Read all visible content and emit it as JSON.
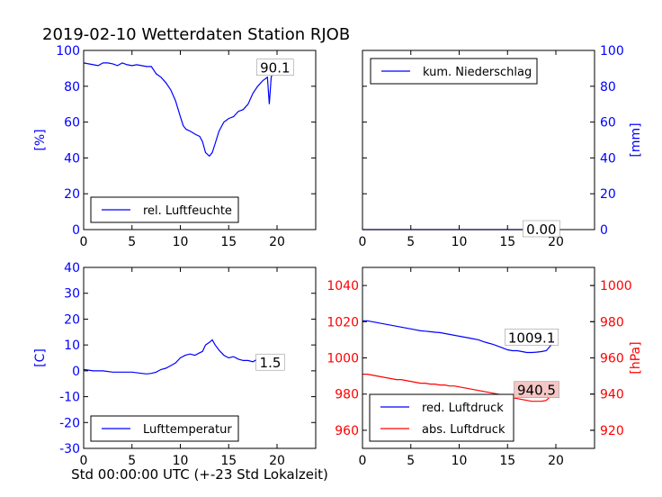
{
  "figure": {
    "title": "2019-02-10 Wetterdaten Station RJOB",
    "xlabel": "Std 00:00:00 UTC (+-23 Std Lokalzeit)"
  },
  "chart_data": [
    {
      "type": "line",
      "id": "humidity",
      "ylabel": "[%]",
      "ylabel_color": "#0000ff",
      "xlim": [
        0,
        24
      ],
      "ylim": [
        0,
        100
      ],
      "xticks": [
        0,
        5,
        10,
        15,
        20
      ],
      "yticks": [
        0,
        20,
        40,
        60,
        80,
        100
      ],
      "legend_location": "lower-left",
      "annotation": {
        "text": "90.1",
        "x": 19.8,
        "y": 90.1
      },
      "series": [
        {
          "name": "rel. Luftfeuchte",
          "color": "#0000ff",
          "x": [
            0,
            0.5,
            1,
            1.5,
            2,
            2.5,
            3,
            3.5,
            4,
            4.5,
            5,
            5.5,
            6,
            6.5,
            7,
            7.5,
            8,
            8.5,
            9,
            9.5,
            10,
            10.3,
            10.6,
            11,
            11.3,
            11.6,
            12,
            12.3,
            12.6,
            13,
            13.3,
            13.6,
            14,
            14.5,
            15,
            15.5,
            16,
            16.5,
            17,
            17.5,
            18,
            18.5,
            19,
            19.2,
            19.4,
            19.6,
            19.8
          ],
          "y": [
            93,
            92.5,
            92,
            91.5,
            93,
            93,
            92.5,
            91.5,
            93,
            92,
            91.5,
            92,
            91.5,
            91,
            91,
            87,
            85,
            82,
            78,
            72,
            63,
            58,
            56,
            55,
            54,
            53,
            52,
            49,
            43,
            41,
            43,
            48,
            55,
            60,
            62,
            63,
            66,
            67,
            70,
            76,
            80,
            83,
            85,
            70,
            85,
            88,
            90.1
          ]
        }
      ]
    },
    {
      "type": "line",
      "id": "precipitation",
      "ylabel": "[mm]",
      "ylabel_color": "#0000ff",
      "xlim": [
        0,
        24
      ],
      "ylim": [
        0,
        100
      ],
      "xticks": [
        0,
        5,
        10,
        15,
        20
      ],
      "yticks": [
        0,
        20,
        40,
        60,
        80,
        100
      ],
      "yaxis_side": "right",
      "legend_location": "upper-left",
      "annotation": {
        "text": "0.00",
        "x": 18.5,
        "y": 0
      },
      "series": [
        {
          "name": "kum. Niederschlag",
          "color": "#0000ff",
          "x": [
            0,
            19.8
          ],
          "y": [
            0,
            0
          ]
        }
      ]
    },
    {
      "type": "line",
      "id": "temperature",
      "ylabel": "[C]",
      "ylabel_color": "#0000ff",
      "xlim": [
        0,
        24
      ],
      "ylim": [
        -30,
        40
      ],
      "xticks": [
        0,
        5,
        10,
        15,
        20
      ],
      "yticks": [
        -30,
        -20,
        -10,
        0,
        10,
        20,
        30,
        40
      ],
      "legend_location": "lower-left",
      "annotation": {
        "text": "1.5",
        "x": 19.3,
        "y": 3
      },
      "series": [
        {
          "name": "Lufttemperatur",
          "color": "#0000ff",
          "x": [
            0,
            1,
            2,
            3,
            4,
            5,
            6,
            6.5,
            7,
            7.5,
            8,
            8.5,
            9,
            9.5,
            10,
            10.5,
            11,
            11.5,
            12,
            12.3,
            12.6,
            13,
            13.3,
            13.6,
            14,
            14.5,
            15,
            15.5,
            16,
            16.5,
            17,
            17.5,
            18,
            18.5,
            19,
            19.5,
            19.8
          ],
          "y": [
            0.5,
            0,
            0,
            -0.5,
            -0.5,
            -0.5,
            -1,
            -1.2,
            -1,
            -0.5,
            0.5,
            1,
            2,
            3,
            5,
            6,
            6.5,
            6,
            7,
            7.5,
            10,
            11,
            12,
            10,
            8,
            6,
            5,
            5.5,
            4.5,
            4,
            4,
            3.5,
            4.5,
            3,
            2,
            2.5,
            1.5
          ]
        }
      ]
    },
    {
      "type": "line",
      "id": "pressure",
      "ylabel": "[hPa]",
      "ylabel_color": "#ff0000",
      "xlim": [
        0,
        24
      ],
      "ylim": [
        950,
        1050
      ],
      "yticks": [
        960,
        980,
        1000,
        1020,
        1040
      ],
      "ylim_right": [
        910,
        1010
      ],
      "yticks_right": [
        920,
        940,
        960,
        980,
        1000
      ],
      "xticks": [
        0,
        5,
        10,
        15,
        20
      ],
      "legend_location": "lower-left",
      "annotations": [
        {
          "text": "1009.1",
          "x": 17.5,
          "y": 1011,
          "axis": "left",
          "fill": "#ffffff"
        },
        {
          "text": "940.5",
          "x": 18,
          "y": 942,
          "axis": "right",
          "fill": "#f4c6c6"
        }
      ],
      "series": [
        {
          "name": "red. Luftdruck",
          "color": "#0000ff",
          "axis": "left",
          "x": [
            0,
            0.5,
            1,
            1.5,
            2,
            2.5,
            3,
            3.5,
            4,
            4.5,
            5,
            5.5,
            6,
            6.5,
            7,
            7.5,
            8,
            8.5,
            9,
            9.5,
            10,
            10.5,
            11,
            11.5,
            12,
            12.5,
            13,
            13.5,
            14,
            14.5,
            15,
            15.5,
            16,
            16.5,
            17,
            17.5,
            18,
            18.5,
            19,
            19.5,
            19.8
          ],
          "y": [
            1020.5,
            1020.5,
            1020,
            1019.5,
            1019,
            1018.5,
            1018,
            1017.5,
            1017,
            1016.5,
            1016,
            1015.5,
            1015,
            1014.8,
            1014.5,
            1014.2,
            1014,
            1013.5,
            1013,
            1012.5,
            1012,
            1011.5,
            1011,
            1010.5,
            1010,
            1009,
            1008.2,
            1007.5,
            1006.5,
            1005.5,
            1004.5,
            1004,
            1004,
            1003.5,
            1003,
            1003,
            1003.2,
            1003.5,
            1004,
            1007,
            1009.1
          ]
        },
        {
          "name": "abs. Luftdruck",
          "color": "#ff0000",
          "axis": "right",
          "x": [
            0,
            0.5,
            1,
            1.5,
            2,
            2.5,
            3,
            3.5,
            4,
            4.5,
            5,
            5.5,
            6,
            6.5,
            7,
            7.5,
            8,
            8.5,
            9,
            9.5,
            10,
            10.5,
            11,
            11.5,
            12,
            12.5,
            13,
            13.5,
            14,
            14.5,
            15,
            15.5,
            16,
            16.5,
            17,
            17.5,
            18,
            18.5,
            19,
            19.5,
            19.8
          ],
          "y": [
            951,
            951,
            950.5,
            950,
            949.5,
            949,
            948.5,
            948,
            948,
            947.5,
            947,
            946.5,
            946,
            946,
            945.5,
            945.5,
            945,
            945,
            944.5,
            944.5,
            944,
            943.5,
            943,
            942.5,
            942,
            941.5,
            941,
            940.5,
            940,
            939.5,
            939,
            938,
            937.5,
            937,
            936.5,
            936,
            936,
            936,
            936.5,
            939,
            940.5
          ]
        }
      ]
    }
  ]
}
